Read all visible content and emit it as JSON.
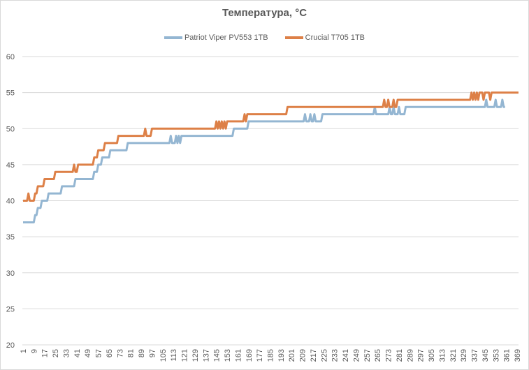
{
  "chart_data": {
    "type": "line",
    "title": "Температура, °C",
    "xlabel": "",
    "ylabel": "",
    "ylim": [
      20,
      60
    ],
    "y_ticks": [
      20,
      25,
      30,
      35,
      40,
      45,
      50,
      55,
      60
    ],
    "grid": "horizontal",
    "legend_position": "top",
    "x_start": 1,
    "x_tick_labels": [
      "1",
      "9",
      "17",
      "25",
      "33",
      "41",
      "49",
      "57",
      "65",
      "73",
      "81",
      "89",
      "97",
      "105",
      "113",
      "121",
      "129",
      "137",
      "145",
      "153",
      "161",
      "169",
      "177",
      "185",
      "193",
      "201",
      "209",
      "217",
      "225",
      "233",
      "241",
      "249",
      "257",
      "265",
      "273",
      "281",
      "289",
      "297",
      "305",
      "313",
      "321",
      "329",
      "337",
      "345",
      "353",
      "361",
      "369"
    ],
    "series": [
      {
        "name": "Patriot Viper PV553 1TB",
        "color": "#94B6D2",
        "values": [
          37,
          37,
          37,
          37,
          37,
          37,
          37,
          37,
          37,
          38,
          38,
          39,
          39,
          39,
          40,
          40,
          40,
          40,
          40,
          41,
          41,
          41,
          41,
          41,
          41,
          41,
          41,
          41,
          41,
          42,
          42,
          42,
          42,
          42,
          42,
          42,
          42,
          42,
          42,
          43,
          43,
          43,
          43,
          43,
          43,
          43,
          43,
          43,
          43,
          43,
          43,
          43,
          43,
          44,
          44,
          44,
          45,
          45,
          45,
          46,
          46,
          46,
          46,
          46,
          46,
          47,
          47,
          47,
          47,
          47,
          47,
          47,
          47,
          47,
          47,
          47,
          47,
          47,
          48,
          48,
          48,
          48,
          48,
          48,
          48,
          48,
          48,
          48,
          48,
          48,
          48,
          48,
          48,
          48,
          48,
          48,
          48,
          48,
          48,
          48,
          48,
          48,
          48,
          48,
          48,
          48,
          48,
          48,
          48,
          48,
          49,
          48,
          48,
          48,
          49,
          48,
          49,
          48,
          49,
          49,
          49,
          49,
          49,
          49,
          49,
          49,
          49,
          49,
          49,
          49,
          49,
          49,
          49,
          49,
          49,
          49,
          49,
          49,
          49,
          49,
          49,
          49,
          49,
          49,
          49,
          49,
          49,
          49,
          49,
          49,
          49,
          49,
          49,
          49,
          49,
          49,
          49,
          50,
          50,
          50,
          50,
          50,
          50,
          50,
          50,
          50,
          50,
          50,
          51,
          51,
          51,
          51,
          51,
          51,
          51,
          51,
          51,
          51,
          51,
          51,
          51,
          51,
          51,
          51,
          51,
          51,
          51,
          51,
          51,
          51,
          51,
          51,
          51,
          51,
          51,
          51,
          51,
          51,
          51,
          51,
          51,
          51,
          51,
          51,
          51,
          51,
          51,
          51,
          51,
          51,
          52,
          51,
          51,
          51,
          52,
          51,
          51,
          52,
          51,
          51,
          51,
          51,
          51,
          52,
          52,
          52,
          52,
          52,
          52,
          52,
          52,
          52,
          52,
          52,
          52,
          52,
          52,
          52,
          52,
          52,
          52,
          52,
          52,
          52,
          52,
          52,
          52,
          52,
          52,
          52,
          52,
          52,
          52,
          52,
          52,
          52,
          52,
          52,
          52,
          52,
          52,
          52,
          53,
          52,
          52,
          52,
          52,
          52,
          52,
          52,
          52,
          52,
          52,
          53,
          52,
          52,
          53,
          52,
          52,
          52,
          53,
          52,
          52,
          52,
          52,
          53,
          53,
          53,
          53,
          53,
          53,
          53,
          53,
          53,
          53,
          53,
          53,
          53,
          53,
          53,
          53,
          53,
          53,
          53,
          53,
          53,
          53,
          53,
          53,
          53,
          53,
          53,
          53,
          53,
          53,
          53,
          53,
          53,
          53,
          53,
          53,
          53,
          53,
          53,
          53,
          53,
          53,
          53,
          53,
          53,
          53,
          53,
          53,
          53,
          53,
          53,
          53,
          53,
          53,
          53,
          53,
          53,
          53,
          53,
          53,
          54,
          53,
          53,
          53,
          53,
          53,
          53,
          54,
          53,
          53,
          53,
          53,
          54,
          53,
          53
        ]
      },
      {
        "name": "Crucial T705 1TB",
        "color": "#DD8047",
        "values": [
          40,
          40,
          40,
          40,
          41,
          40,
          40,
          40,
          40,
          41,
          41,
          42,
          42,
          42,
          42,
          42,
          43,
          43,
          43,
          43,
          43,
          43,
          43,
          43,
          44,
          44,
          44,
          44,
          44,
          44,
          44,
          44,
          44,
          44,
          44,
          44,
          44,
          44,
          45,
          44,
          44,
          45,
          45,
          45,
          45,
          45,
          45,
          45,
          45,
          45,
          45,
          45,
          45,
          46,
          46,
          46,
          47,
          47,
          47,
          47,
          47,
          48,
          48,
          48,
          48,
          48,
          48,
          48,
          48,
          48,
          48,
          49,
          49,
          49,
          49,
          49,
          49,
          49,
          49,
          49,
          49,
          49,
          49,
          49,
          49,
          49,
          49,
          49,
          49,
          49,
          49,
          50,
          49,
          49,
          49,
          49,
          50,
          50,
          50,
          50,
          50,
          50,
          50,
          50,
          50,
          50,
          50,
          50,
          50,
          50,
          50,
          50,
          50,
          50,
          50,
          50,
          50,
          50,
          50,
          50,
          50,
          50,
          50,
          50,
          50,
          50,
          50,
          50,
          50,
          50,
          50,
          50,
          50,
          50,
          50,
          50,
          50,
          50,
          50,
          50,
          50,
          50,
          50,
          50,
          51,
          50,
          51,
          50,
          51,
          50,
          51,
          50,
          51,
          51,
          51,
          51,
          51,
          51,
          51,
          51,
          51,
          51,
          51,
          51,
          51,
          52,
          51,
          52,
          52,
          52,
          52,
          52,
          52,
          52,
          52,
          52,
          52,
          52,
          52,
          52,
          52,
          52,
          52,
          52,
          52,
          52,
          52,
          52,
          52,
          52,
          52,
          52,
          52,
          52,
          52,
          52,
          52,
          53,
          53,
          53,
          53,
          53,
          53,
          53,
          53,
          53,
          53,
          53,
          53,
          53,
          53,
          53,
          53,
          53,
          53,
          53,
          53,
          53,
          53,
          53,
          53,
          53,
          53,
          53,
          53,
          53,
          53,
          53,
          53,
          53,
          53,
          53,
          53,
          53,
          53,
          53,
          53,
          53,
          53,
          53,
          53,
          53,
          53,
          53,
          53,
          53,
          53,
          53,
          53,
          53,
          53,
          53,
          53,
          53,
          53,
          53,
          53,
          53,
          53,
          53,
          53,
          53,
          53,
          53,
          53,
          53,
          53,
          53,
          53,
          54,
          53,
          53,
          54,
          53,
          53,
          53,
          54,
          53,
          53,
          54,
          54,
          54,
          54,
          54,
          54,
          54,
          54,
          54,
          54,
          54,
          54,
          54,
          54,
          54,
          54,
          54,
          54,
          54,
          54,
          54,
          54,
          54,
          54,
          54,
          54,
          54,
          54,
          54,
          54,
          54,
          54,
          54,
          54,
          54,
          54,
          54,
          54,
          54,
          54,
          54,
          54,
          54,
          54,
          54,
          54,
          54,
          54,
          54,
          54,
          54,
          54,
          54,
          54,
          54,
          55,
          54,
          55,
          54,
          55,
          54,
          55,
          55,
          55,
          54,
          55,
          55,
          55,
          55,
          54,
          55,
          55,
          55,
          55,
          55,
          55,
          55,
          55,
          55,
          55,
          55,
          55,
          55,
          55,
          55,
          55,
          55,
          55,
          55,
          55,
          55
        ]
      }
    ]
  }
}
